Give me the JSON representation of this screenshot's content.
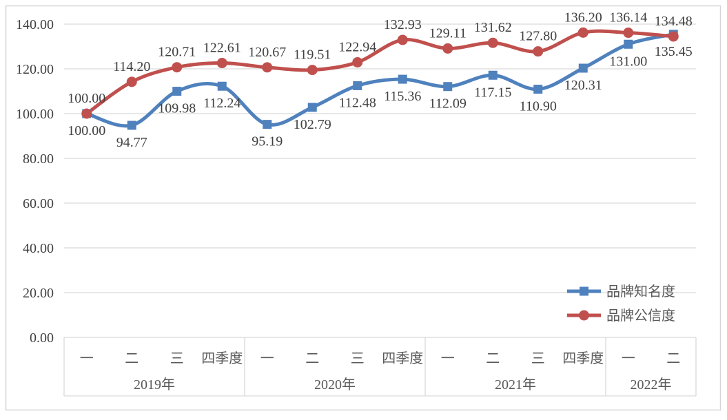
{
  "chart_data": {
    "type": "line",
    "smoothed": true,
    "title": "",
    "x": [
      "2019Q1",
      "2019Q2",
      "2019Q3",
      "2019Q4",
      "2020Q1",
      "2020Q2",
      "2020Q3",
      "2020Q4",
      "2021Q1",
      "2021Q2",
      "2021Q3",
      "2021Q4",
      "2022Q1",
      "2022Q2"
    ],
    "series": [
      {
        "name": "品牌知名度",
        "color": "#4F81BD",
        "marker": "square",
        "label_position": "below",
        "values": [
          100.0,
          94.77,
          109.98,
          112.24,
          95.19,
          102.79,
          112.48,
          115.36,
          112.09,
          117.15,
          110.9,
          120.31,
          131.0,
          135.45
        ]
      },
      {
        "name": "品牌公信度",
        "color": "#C0504D",
        "marker": "circle",
        "label_position": "above",
        "values": [
          100.0,
          114.2,
          120.71,
          122.61,
          120.67,
          119.51,
          122.94,
          132.93,
          129.11,
          131.62,
          127.8,
          136.2,
          136.14,
          134.48
        ]
      }
    ],
    "x_axis": {
      "quarter_labels": [
        "一",
        "二",
        "三",
        "四季度",
        "一",
        "二",
        "三",
        "四季度",
        "一",
        "二",
        "三",
        "四季度",
        "一",
        "二"
      ],
      "year_groups": [
        {
          "label": "2019年",
          "span": 4
        },
        {
          "label": "2020年",
          "span": 4
        },
        {
          "label": "2021年",
          "span": 4
        },
        {
          "label": "2022年",
          "span": 2
        }
      ]
    },
    "y_axis": {
      "min": 0,
      "max": 140,
      "step": 20,
      "tick_labels": [
        "0.00",
        "20.00",
        "40.00",
        "60.00",
        "80.00",
        "100.00",
        "120.00",
        "140.00"
      ],
      "decimals": 2
    },
    "legend": {
      "position": "bottom-right",
      "items": [
        "品牌知名度",
        "品牌公信度"
      ]
    },
    "grid": true,
    "data_label_decimals": 2,
    "colors": {
      "gridline": "#D9D9D9",
      "border": "#D6D6D6",
      "number_text": "#404040",
      "axis_text": "#595959"
    }
  }
}
